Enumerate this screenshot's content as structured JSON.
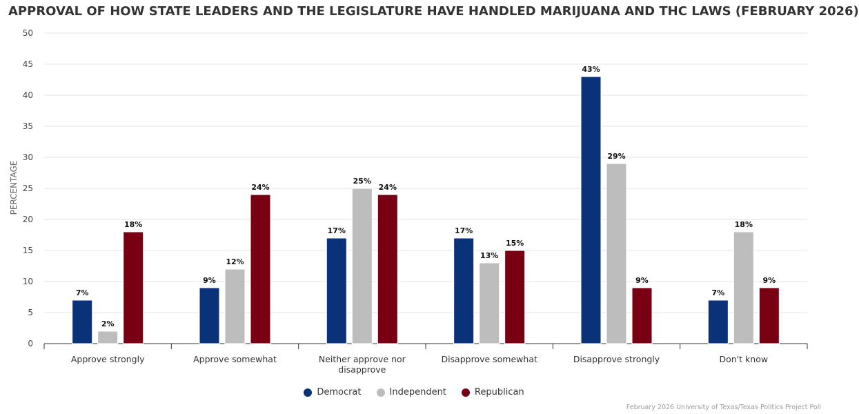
{
  "chart_data": {
    "type": "bar",
    "title": "APPROVAL OF HOW STATE LEADERS AND THE LEGISLATURE HAVE HANDLED MARIJUANA AND THC LAWS (FEBRUARY 2026)",
    "ylabel": "PERCENTAGE",
    "xlabel": "",
    "ylim": [
      0,
      50
    ],
    "yticks": [
      0,
      5,
      10,
      15,
      20,
      25,
      30,
      35,
      40,
      45,
      50
    ],
    "grid": true,
    "legend_position": "bottom-center",
    "categories": [
      "Approve strongly",
      "Approve somewhat",
      "Neither approve nor disapprove",
      "Disapprove somewhat",
      "Disapprove strongly",
      "Don't know"
    ],
    "series": [
      {
        "name": "Democrat",
        "color": "#0a3278",
        "values": [
          7,
          9,
          17,
          17,
          43,
          7
        ]
      },
      {
        "name": "Independent",
        "color": "#bdbdbd",
        "values": [
          2,
          12,
          25,
          13,
          29,
          18
        ]
      },
      {
        "name": "Republican",
        "color": "#780012",
        "values": [
          18,
          24,
          24,
          15,
          9,
          9
        ]
      }
    ],
    "value_suffix": "%"
  },
  "source": "February 2026 University of Texas/Texas Politics Project Poll"
}
